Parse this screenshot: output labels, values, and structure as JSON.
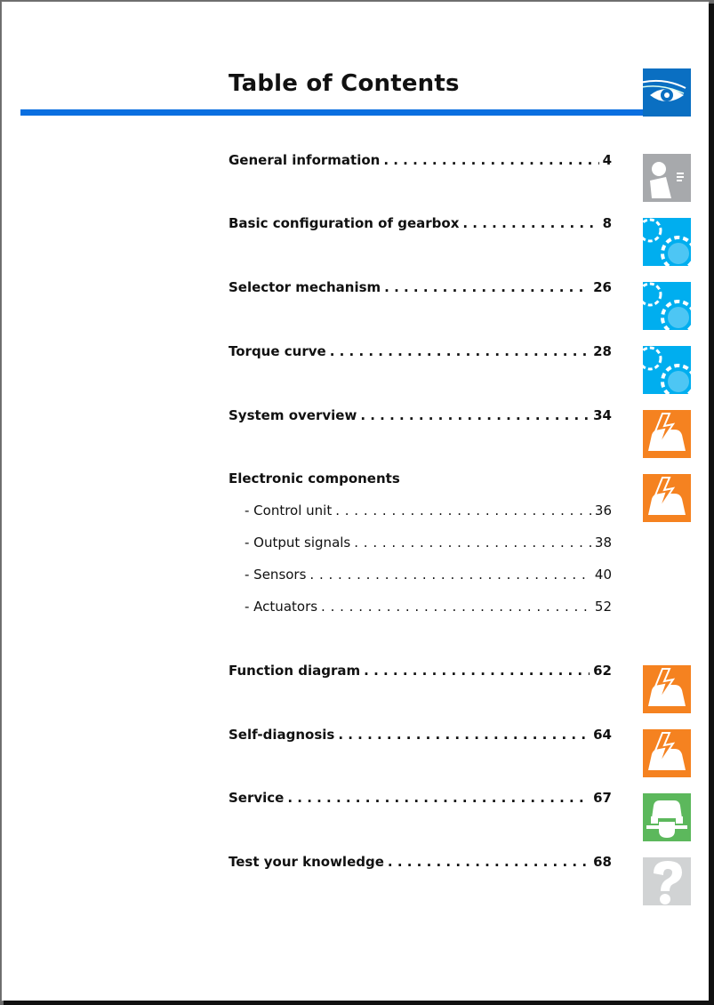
{
  "title": "Table of Contents",
  "colors": {
    "accent_bar": "#0a6fe0",
    "gear_icon": "#00aeef",
    "electrical_icon": "#f58220",
    "service_icon": "#5cb85c",
    "grey_icon": "#a7a9ac"
  },
  "header_icon": "eye-icon",
  "entries": [
    {
      "label": "General information",
      "page": "4",
      "icon": "reading-person-icon"
    },
    {
      "label": "Basic configuration of gearbox",
      "page": "8",
      "icon": "gear-icon"
    },
    {
      "label": "Selector mechanism",
      "page": "26",
      "icon": "gear-icon"
    },
    {
      "label": "Torque curve",
      "page": "28",
      "icon": "gear-icon"
    },
    {
      "label": "System overview",
      "page": "34",
      "icon": "car-electrical-icon"
    },
    {
      "label": "Electronic components",
      "page": "",
      "icon": "car-electrical-icon",
      "subentries": [
        {
          "label": "- Control unit",
          "page": "36"
        },
        {
          "label": "- Output signals",
          "page": "38"
        },
        {
          "label": "- Sensors",
          "page": "40"
        },
        {
          "label": "- Actuators",
          "page": "52"
        }
      ]
    },
    {
      "label": "Function diagram",
      "page": "62",
      "icon": "car-electrical-icon"
    },
    {
      "label": "Self-diagnosis",
      "page": "64",
      "icon": "car-electrical-icon"
    },
    {
      "label": "Service",
      "page": "67",
      "icon": "car-service-wrench-icon"
    },
    {
      "label": "Test your knowledge",
      "page": "68",
      "icon": "question-mark-icon"
    }
  ]
}
